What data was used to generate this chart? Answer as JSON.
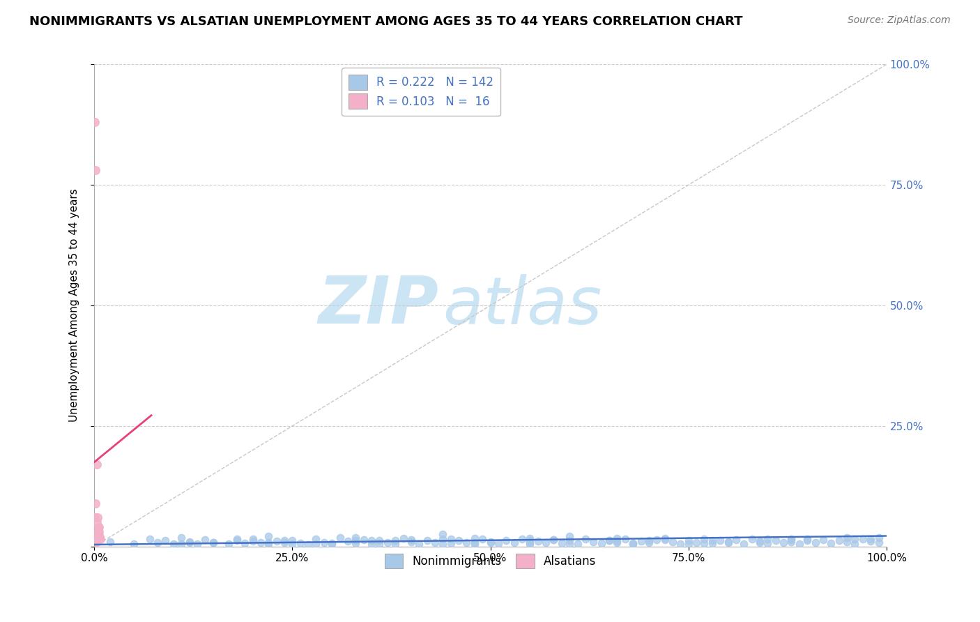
{
  "title": "NONIMMIGRANTS VS ALSATIAN UNEMPLOYMENT AMONG AGES 35 TO 44 YEARS CORRELATION CHART",
  "source": "Source: ZipAtlas.com",
  "ylabel": "Unemployment Among Ages 35 to 44 years",
  "xlim": [
    0.0,
    1.0
  ],
  "ylim": [
    0.0,
    1.0
  ],
  "xticks": [
    0.0,
    0.25,
    0.5,
    0.75,
    1.0
  ],
  "xtick_labels": [
    "0.0%",
    "25.0%",
    "50.0%",
    "75.0%",
    "100.0%"
  ],
  "yticks": [
    0.0,
    0.25,
    0.5,
    0.75,
    1.0
  ],
  "ytick_labels_right": [
    "",
    "25.0%",
    "50.0%",
    "75.0%",
    "100.0%"
  ],
  "nonimmigrant_dot_color": "#a8c8e8",
  "alsatian_dot_color": "#f4b0c8",
  "nonimmigrant_line_color": "#4472c4",
  "alsatian_line_color": "#e8407a",
  "diagonal_color": "#c8c8c8",
  "R_nonimmigrant": 0.222,
  "N_nonimmigrant": 142,
  "R_alsatian": 0.103,
  "N_alsatian": 16,
  "watermark_zip": "ZIP",
  "watermark_atlas": "atlas",
  "watermark_color": "#cce5f5",
  "legend_text_color": "#4472c4",
  "ytick_right_color": "#4472c4",
  "title_fontsize": 13,
  "axis_label_fontsize": 11,
  "tick_fontsize": 11,
  "legend_fontsize": 12,
  "seed": 42,
  "nonimmigrant_x": [
    0.02,
    0.05,
    0.07,
    0.08,
    0.09,
    0.1,
    0.11,
    0.12,
    0.13,
    0.14,
    0.15,
    0.17,
    0.18,
    0.19,
    0.2,
    0.21,
    0.22,
    0.23,
    0.24,
    0.25,
    0.26,
    0.27,
    0.28,
    0.29,
    0.3,
    0.31,
    0.32,
    0.33,
    0.34,
    0.35,
    0.36,
    0.37,
    0.38,
    0.39,
    0.4,
    0.41,
    0.42,
    0.43,
    0.44,
    0.45,
    0.46,
    0.47,
    0.48,
    0.49,
    0.5,
    0.51,
    0.52,
    0.53,
    0.54,
    0.55,
    0.56,
    0.57,
    0.58,
    0.59,
    0.6,
    0.61,
    0.62,
    0.63,
    0.64,
    0.65,
    0.66,
    0.67,
    0.68,
    0.69,
    0.7,
    0.71,
    0.72,
    0.73,
    0.74,
    0.75,
    0.76,
    0.77,
    0.78,
    0.79,
    0.8,
    0.81,
    0.82,
    0.83,
    0.84,
    0.85,
    0.86,
    0.87,
    0.88,
    0.89,
    0.9,
    0.91,
    0.92,
    0.93,
    0.94,
    0.95,
    0.96,
    0.97,
    0.98,
    0.99,
    0.15,
    0.25,
    0.35,
    0.45,
    0.55,
    0.65,
    0.75,
    0.85,
    0.95,
    0.2,
    0.3,
    0.4,
    0.5,
    0.6,
    0.7,
    0.8,
    0.9,
    0.22,
    0.33,
    0.44,
    0.55,
    0.66,
    0.77,
    0.88,
    0.99,
    0.18,
    0.28,
    0.38,
    0.48,
    0.58,
    0.68,
    0.78,
    0.88,
    0.98,
    0.12,
    0.24,
    0.36,
    0.48,
    0.6,
    0.72,
    0.84,
    0.96,
    0.11,
    0.22,
    0.33,
    0.44,
    0.55,
    0.66
  ],
  "nonimmigrant_y": [
    0.01,
    0.005,
    0.015,
    0.008,
    0.012,
    0.005,
    0.018,
    0.01,
    0.006,
    0.014,
    0.008,
    0.005,
    0.012,
    0.007,
    0.015,
    0.009,
    0.006,
    0.011,
    0.008,
    0.013,
    0.007,
    0.004,
    0.016,
    0.009,
    0.005,
    0.018,
    0.011,
    0.007,
    0.014,
    0.006,
    0.012,
    0.008,
    0.005,
    0.017,
    0.01,
    0.006,
    0.013,
    0.009,
    0.015,
    0.007,
    0.012,
    0.008,
    0.005,
    0.016,
    0.01,
    0.007,
    0.013,
    0.009,
    0.015,
    0.006,
    0.011,
    0.008,
    0.014,
    0.007,
    0.013,
    0.005,
    0.016,
    0.01,
    0.007,
    0.012,
    0.009,
    0.015,
    0.006,
    0.011,
    0.008,
    0.014,
    0.017,
    0.01,
    0.006,
    0.013,
    0.009,
    0.015,
    0.007,
    0.012,
    0.008,
    0.014,
    0.005,
    0.016,
    0.011,
    0.007,
    0.013,
    0.009,
    0.015,
    0.006,
    0.012,
    0.008,
    0.014,
    0.007,
    0.013,
    0.01,
    0.006,
    0.016,
    0.011,
    0.018,
    0.009,
    0.005,
    0.012,
    0.015,
    0.008,
    0.013,
    0.006,
    0.016,
    0.019,
    0.011,
    0.007,
    0.014,
    0.009,
    0.006,
    0.013,
    0.01,
    0.016,
    0.008,
    0.012,
    0.005,
    0.017,
    0.011,
    0.007,
    0.014,
    0.009,
    0.015,
    0.006,
    0.012,
    0.008,
    0.014,
    0.007,
    0.013,
    0.01,
    0.016,
    0.008,
    0.012,
    0.005,
    0.017,
    0.021,
    0.014,
    0.009,
    0.015,
    0.006,
    0.022,
    0.019,
    0.025,
    0.012,
    0.017
  ],
  "alsatian_x": [
    0.001,
    0.002,
    0.003,
    0.004,
    0.005,
    0.006,
    0.007,
    0.008,
    0.003,
    0.004,
    0.005,
    0.002,
    0.001,
    0.006,
    0.004,
    0.003
  ],
  "alsatian_y": [
    0.88,
    0.78,
    0.17,
    0.06,
    0.04,
    0.03,
    0.02,
    0.015,
    0.05,
    0.03,
    0.02,
    0.09,
    0.06,
    0.04,
    0.015,
    0.01
  ],
  "pink_line_x": [
    0.0,
    0.072
  ],
  "pink_line_y": [
    0.175,
    0.272
  ],
  "blue_line_x": [
    0.0,
    1.0
  ],
  "blue_line_y": [
    0.004,
    0.022
  ]
}
